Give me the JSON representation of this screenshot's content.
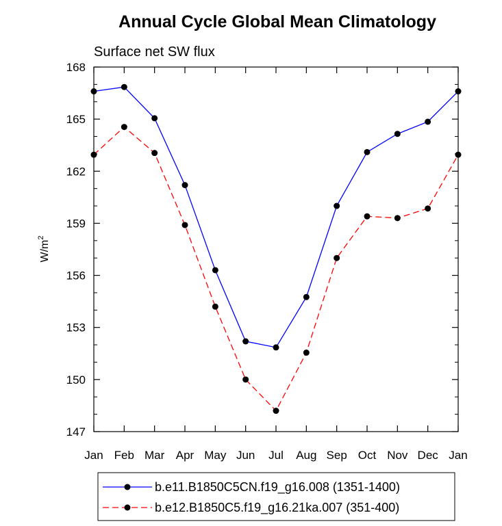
{
  "chart_data": {
    "type": "line",
    "title": "Annual Cycle Global Mean Climatology",
    "subtitle": "Surface net SW flux",
    "xlabel": "",
    "ylabel": "W/m",
    "ylabel_sup": "2",
    "categories": [
      "Jan",
      "Feb",
      "Mar",
      "Apr",
      "May",
      "Jun",
      "Jul",
      "Aug",
      "Sep",
      "Oct",
      "Nov",
      "Dec",
      "Jan"
    ],
    "yticks": [
      147,
      150,
      153,
      156,
      159,
      162,
      165,
      168
    ],
    "ylim": [
      147,
      168
    ],
    "grid": false,
    "legend_position": "bottom",
    "series": [
      {
        "name": "b.e11.B1850C5CN.f19_g16.008 (1351-1400)",
        "color": "#0000ff",
        "dash": "solid",
        "marker": "circle",
        "values": [
          166.6,
          166.85,
          165.05,
          161.2,
          156.3,
          152.2,
          151.85,
          154.75,
          160.0,
          163.1,
          164.15,
          164.85,
          166.6
        ]
      },
      {
        "name": "b.e12.B1850C5.f19_g16.21ka.007 (351-400)",
        "color": "#ff0000",
        "dash": "dashed",
        "marker": "circle",
        "values": [
          162.95,
          164.55,
          163.05,
          158.9,
          154.2,
          150.0,
          148.2,
          151.55,
          157.0,
          159.4,
          159.3,
          159.85,
          162.95
        ]
      }
    ]
  }
}
